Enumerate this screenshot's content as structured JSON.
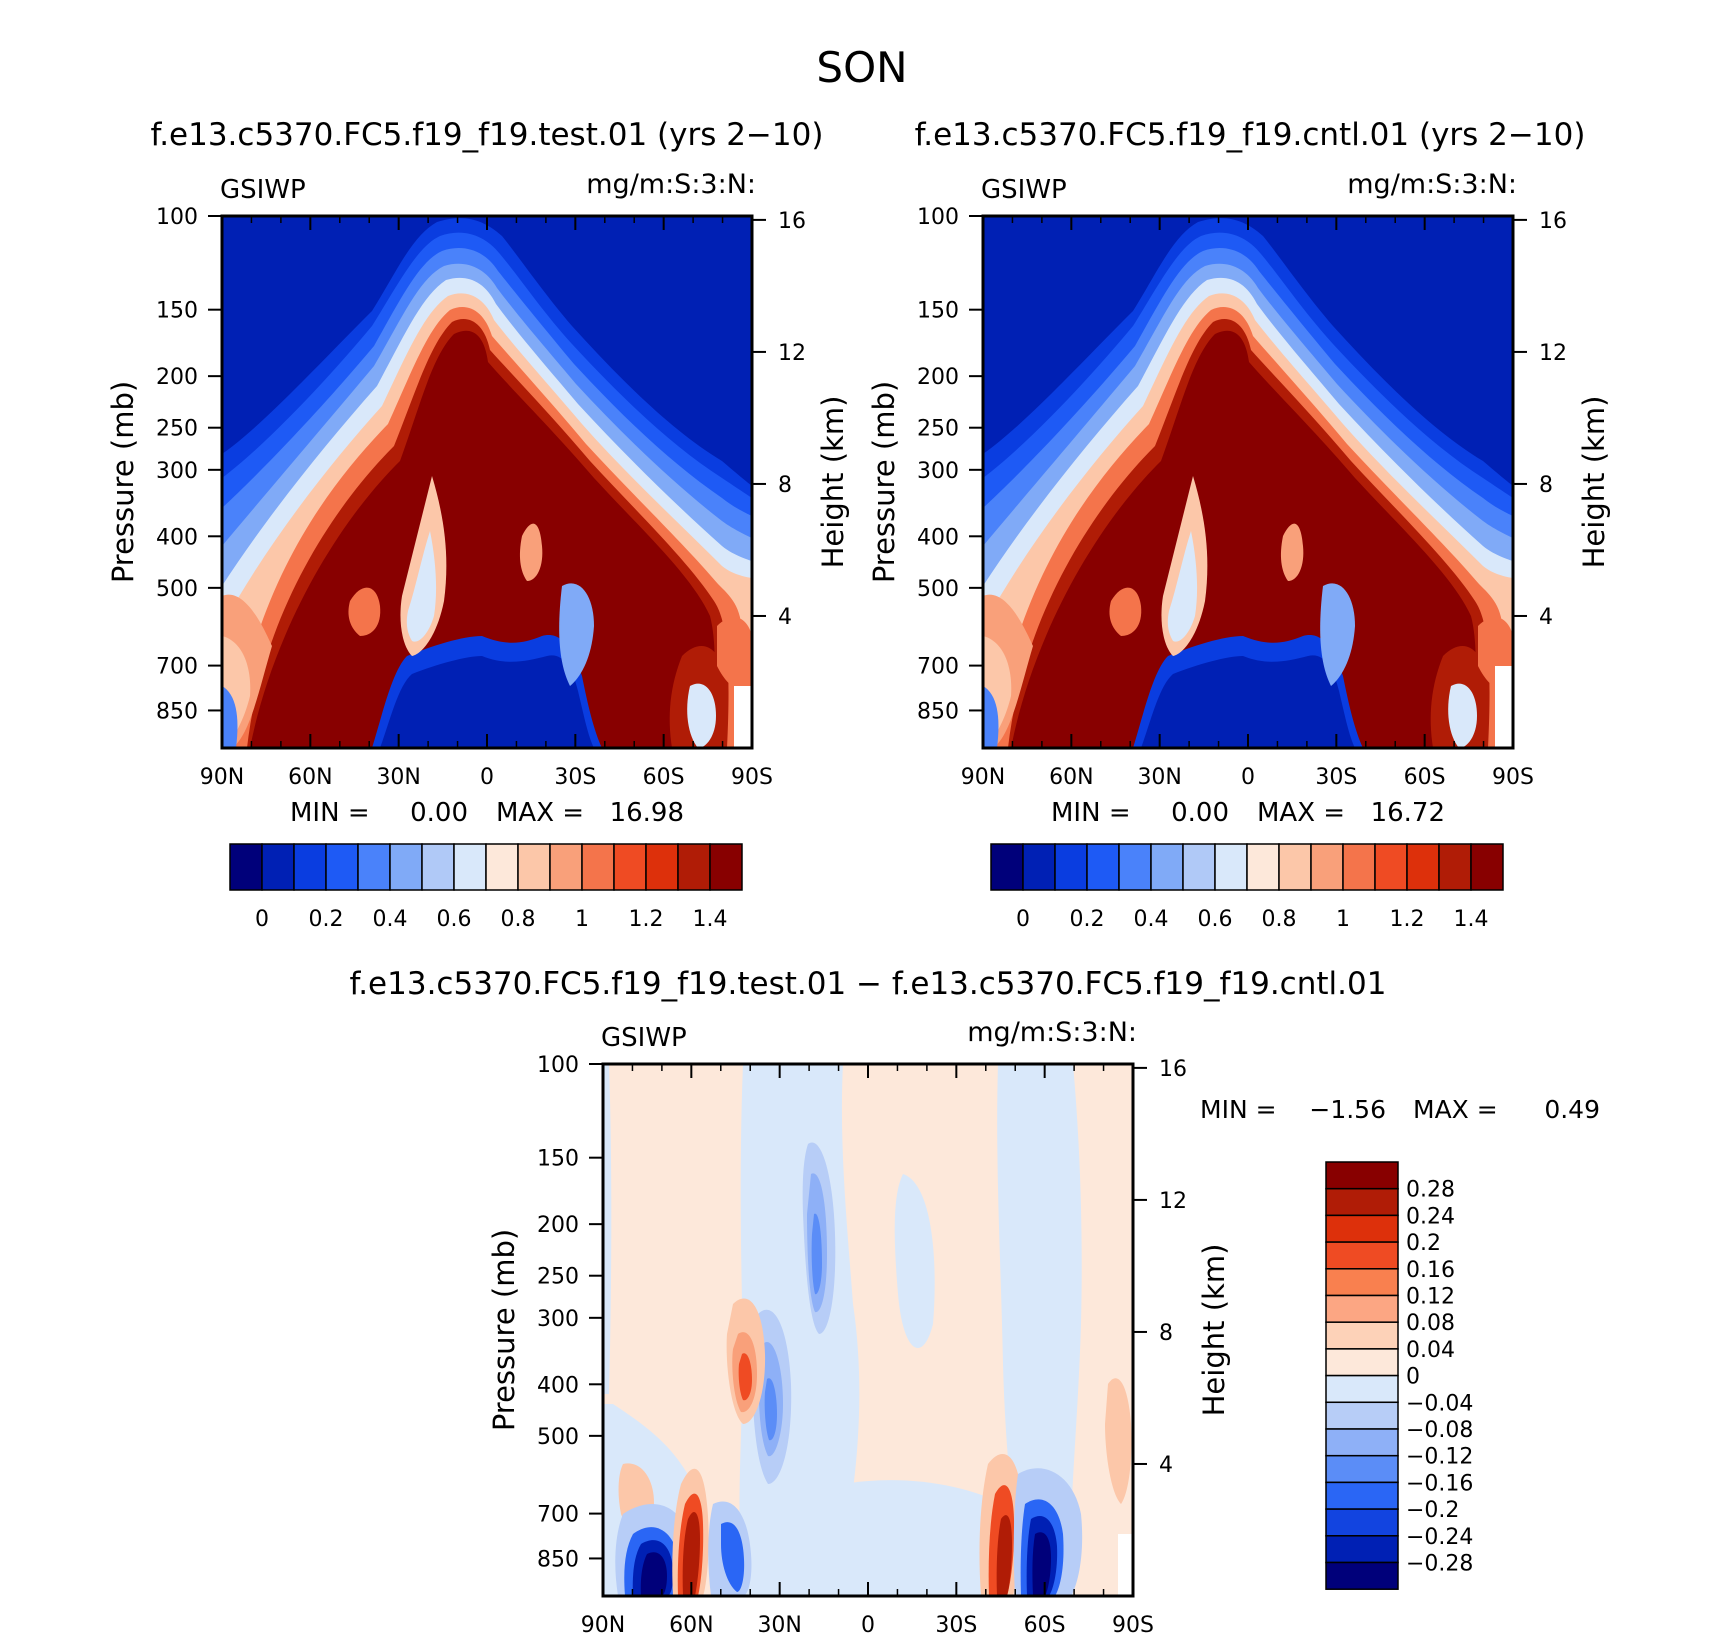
{
  "figure": {
    "season_title": "SON"
  },
  "chart_data": [
    {
      "id": "test",
      "type": "heatmap",
      "title": "f.e13.c5370.FC5.f19_f19.test.01 (yrs 2−10)",
      "variable": "GSIWP",
      "units": "mg/m:S:3:N:",
      "xlabel": "",
      "ylabel": "Pressure (mb)",
      "y2label": "Height (km)",
      "x_ticks": [
        "90N",
        "60N",
        "30N",
        "0",
        "30S",
        "60S",
        "90S"
      ],
      "x_range": [
        -90,
        90
      ],
      "y_ticks": [
        "100",
        "150",
        "200",
        "250",
        "300",
        "400",
        "500",
        "700",
        "850"
      ],
      "y_range_mb": [
        100,
        1000
      ],
      "y2_ticks": [
        "16",
        "12",
        "8",
        "4"
      ],
      "min_label": "MIN =",
      "min_value": "0.00",
      "max_label": "MAX =",
      "max_value": "16.98",
      "colorbar": {
        "orientation": "horizontal",
        "levels": [
          0,
          0.1,
          0.2,
          0.3,
          0.4,
          0.5,
          0.6,
          0.7,
          0.8,
          0.9,
          1.0,
          1.1,
          1.2,
          1.3,
          1.4
        ],
        "labels": [
          "0",
          "0.2",
          "0.4",
          "0.6",
          "0.8",
          "1",
          "1.2",
          "1.4"
        ],
        "colors": [
          "#00007a",
          "#0020b4",
          "#0a3de0",
          "#1e5af5",
          "#4a82fa",
          "#80aaf7",
          "#b0c9f7",
          "#d9e8fa",
          "#fde8da",
          "#fcc7a9",
          "#f9a07a",
          "#f4744b",
          "#ef4b23",
          "#dd300b",
          "#b01c06",
          "#880000"
        ]
      }
    },
    {
      "id": "cntl",
      "type": "heatmap",
      "title": "f.e13.c5370.FC5.f19_f19.cntl.01 (yrs 2−10)",
      "variable": "GSIWP",
      "units": "mg/m:S:3:N:",
      "xlabel": "",
      "ylabel": "Pressure (mb)",
      "y2label": "Height (km)",
      "x_ticks": [
        "90N",
        "60N",
        "30N",
        "0",
        "30S",
        "60S",
        "90S"
      ],
      "x_range": [
        -90,
        90
      ],
      "y_ticks": [
        "100",
        "150",
        "200",
        "250",
        "300",
        "400",
        "500",
        "700",
        "850"
      ],
      "y_range_mb": [
        100,
        1000
      ],
      "y2_ticks": [
        "16",
        "12",
        "8",
        "4"
      ],
      "min_label": "MIN =",
      "min_value": "0.00",
      "max_label": "MAX =",
      "max_value": "16.72",
      "colorbar": {
        "orientation": "horizontal",
        "levels": [
          0,
          0.1,
          0.2,
          0.3,
          0.4,
          0.5,
          0.6,
          0.7,
          0.8,
          0.9,
          1.0,
          1.1,
          1.2,
          1.3,
          1.4
        ],
        "labels": [
          "0",
          "0.2",
          "0.4",
          "0.6",
          "0.8",
          "1",
          "1.2",
          "1.4"
        ],
        "colors": [
          "#00007a",
          "#0020b4",
          "#0a3de0",
          "#1e5af5",
          "#4a82fa",
          "#80aaf7",
          "#b0c9f7",
          "#d9e8fa",
          "#fde8da",
          "#fcc7a9",
          "#f9a07a",
          "#f4744b",
          "#ef4b23",
          "#dd300b",
          "#b01c06",
          "#880000"
        ]
      }
    },
    {
      "id": "diff",
      "type": "heatmap",
      "title": "f.e13.c5370.FC5.f19_f19.test.01 − f.e13.c5370.FC5.f19_f19.cntl.01",
      "variable": "GSIWP",
      "units": "mg/m:S:3:N:",
      "xlabel": "",
      "ylabel": "Pressure (mb)",
      "y2label": "Height (km)",
      "x_ticks": [
        "90N",
        "60N",
        "30N",
        "0",
        "30S",
        "60S",
        "90S"
      ],
      "x_range": [
        -90,
        90
      ],
      "y_ticks": [
        "100",
        "150",
        "200",
        "250",
        "300",
        "400",
        "500",
        "700",
        "850"
      ],
      "y_range_mb": [
        100,
        1000
      ],
      "y2_ticks": [
        "16",
        "12",
        "8",
        "4"
      ],
      "min_label": "MIN =",
      "min_value": "−1.56",
      "max_label": "MAX =",
      "max_value": "0.49",
      "colorbar": {
        "orientation": "vertical",
        "levels": [
          -0.28,
          -0.24,
          -0.2,
          -0.16,
          -0.12,
          -0.08,
          -0.04,
          0,
          0.04,
          0.08,
          0.12,
          0.16,
          0.2,
          0.24,
          0.28
        ],
        "labels": [
          "0.28",
          "0.24",
          "0.2",
          "0.16",
          "0.12",
          "0.08",
          "0.04",
          "0",
          "−0.04",
          "−0.08",
          "−0.12",
          "−0.16",
          "−0.2",
          "−0.24",
          "−0.28"
        ],
        "colors": [
          "#880000",
          "#b01c06",
          "#dd300b",
          "#ef4b23",
          "#f9804f",
          "#fca683",
          "#fdd2b8",
          "#fde8da",
          "#d9e8fa",
          "#b7cdf7",
          "#8eb0f7",
          "#5b8df7",
          "#2a66f5",
          "#1244e0",
          "#0020b4",
          "#00007a"
        ]
      }
    }
  ]
}
